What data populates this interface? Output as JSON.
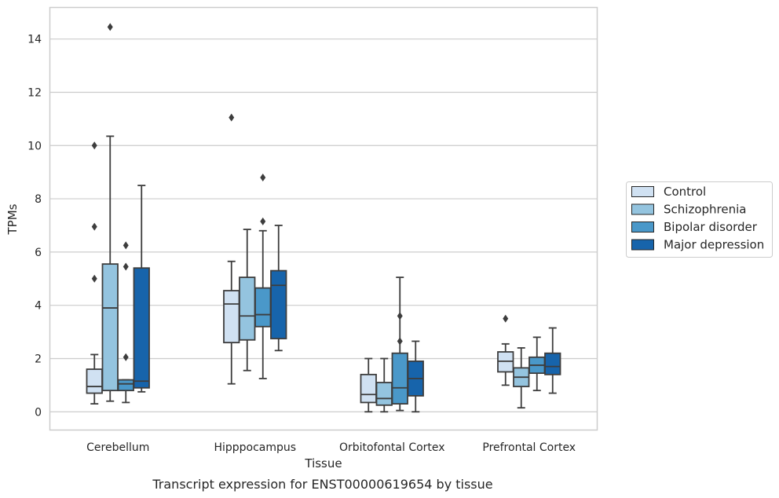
{
  "chart_data": {
    "type": "boxplot",
    "xlabel": "Tissue",
    "ylabel": "TPMs",
    "caption": "Transcript expression for ENST00000619654 by tissue",
    "ylim": [
      -0.7,
      15.2
    ],
    "yticks": [
      0,
      2,
      4,
      6,
      8,
      10,
      12,
      14
    ],
    "grid": "horizontal",
    "legend_position": "right",
    "categories": [
      "Cerebellum",
      "Hipppocampus",
      "Orbitofontal Cortex",
      "Prefrontal Cortex"
    ],
    "series": [
      {
        "name": "Control",
        "color": "#d0e1f2",
        "boxes": [
          {
            "whisker_low": 0.3,
            "q1": 0.7,
            "median": 0.95,
            "q3": 1.6,
            "whisker_high": 2.15,
            "outliers": [
              5.0,
              6.95,
              10.0
            ]
          },
          {
            "whisker_low": 1.05,
            "q1": 2.6,
            "median": 4.05,
            "q3": 4.55,
            "whisker_high": 5.65,
            "outliers": [
              11.05
            ]
          },
          {
            "whisker_low": 0.0,
            "q1": 0.35,
            "median": 0.65,
            "q3": 1.4,
            "whisker_high": 2.0,
            "outliers": []
          },
          {
            "whisker_low": 1.0,
            "q1": 1.5,
            "median": 1.9,
            "q3": 2.25,
            "whisker_high": 2.55,
            "outliers": [
              3.5
            ]
          }
        ]
      },
      {
        "name": "Schizophrenia",
        "color": "#94c4df",
        "boxes": [
          {
            "whisker_low": 0.4,
            "q1": 0.8,
            "median": 3.9,
            "q3": 5.55,
            "whisker_high": 10.35,
            "outliers": [
              14.45
            ]
          },
          {
            "whisker_low": 1.55,
            "q1": 2.7,
            "median": 3.6,
            "q3": 5.05,
            "whisker_high": 6.85,
            "outliers": []
          },
          {
            "whisker_low": 0.0,
            "q1": 0.25,
            "median": 0.5,
            "q3": 1.1,
            "whisker_high": 2.0,
            "outliers": []
          },
          {
            "whisker_low": 0.15,
            "q1": 0.95,
            "median": 1.3,
            "q3": 1.65,
            "whisker_high": 2.4,
            "outliers": []
          }
        ]
      },
      {
        "name": "Bipolar disorder",
        "color": "#4a98c9",
        "boxes": [
          {
            "whisker_low": 0.35,
            "q1": 0.8,
            "median": 1.05,
            "q3": 1.2,
            "whisker_high": 1.2,
            "outliers": [
              2.05,
              5.45,
              6.25
            ]
          },
          {
            "whisker_low": 1.25,
            "q1": 3.2,
            "median": 3.65,
            "q3": 4.65,
            "whisker_high": 6.8,
            "outliers": [
              7.15,
              8.8
            ]
          },
          {
            "whisker_low": 0.05,
            "q1": 0.3,
            "median": 0.9,
            "q3": 2.2,
            "whisker_high": 5.05,
            "outliers": [
              2.65,
              3.6
            ]
          },
          {
            "whisker_low": 0.8,
            "q1": 1.45,
            "median": 1.75,
            "q3": 2.05,
            "whisker_high": 2.8,
            "outliers": []
          }
        ]
      },
      {
        "name": "Major depression",
        "color": "#1764ab",
        "boxes": [
          {
            "whisker_low": 0.75,
            "q1": 0.9,
            "median": 1.15,
            "q3": 5.4,
            "whisker_high": 8.5,
            "outliers": []
          },
          {
            "whisker_low": 2.3,
            "q1": 2.75,
            "median": 4.75,
            "q3": 5.3,
            "whisker_high": 7.0,
            "outliers": []
          },
          {
            "whisker_low": 0.0,
            "q1": 0.6,
            "median": 1.25,
            "q3": 1.9,
            "whisker_high": 2.65,
            "outliers": []
          },
          {
            "whisker_low": 0.7,
            "q1": 1.4,
            "median": 1.7,
            "q3": 2.2,
            "whisker_high": 3.15,
            "outliers": []
          }
        ]
      }
    ]
  }
}
